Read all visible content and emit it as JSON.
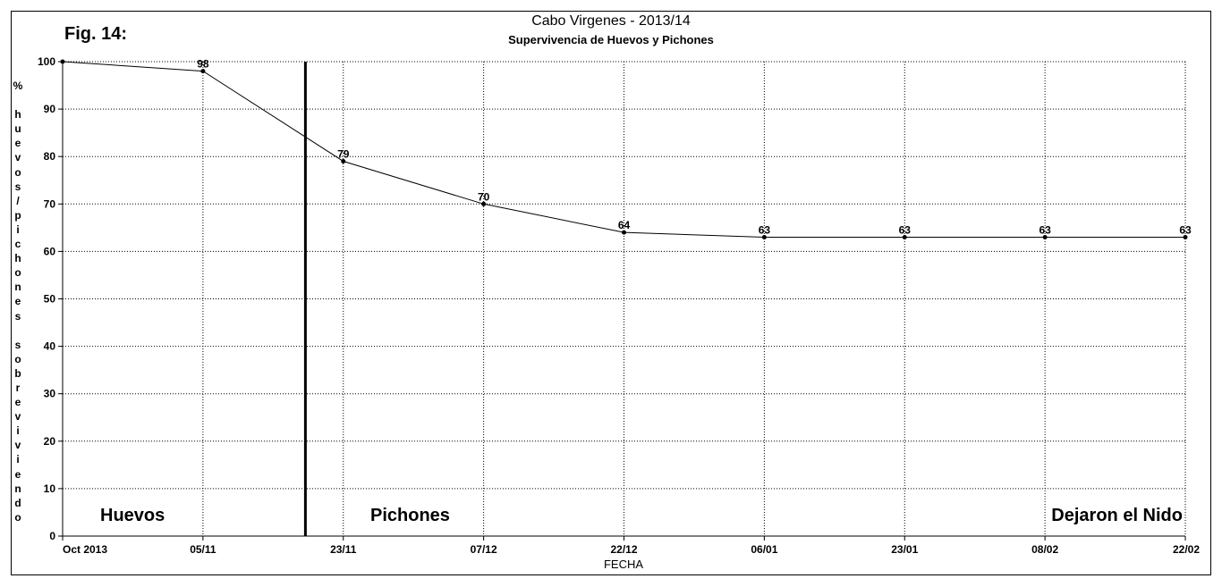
{
  "figure_label": "Fig. 14:",
  "chart_data": {
    "type": "line",
    "title": "Cabo Virgenes - 2013/14",
    "subtitle": "Supervivencia de Huevos y Pichones",
    "xlabel": "FECHA",
    "ylabel": "%\n\nh\nu\ne\nv\no\ns\n/\np\ni\nc\nh\no\nn\ne\ns\n\ns\no\nb\nr\ne\nv\ni\nv\ni\ne\nn\nd\no",
    "categories": [
      "Oct 2013",
      "05/11",
      "23/11",
      "07/12",
      "22/12",
      "06/01",
      "23/01",
      "08/02",
      "22/02"
    ],
    "values": [
      100,
      98,
      79,
      70,
      64,
      63,
      63,
      63,
      63
    ],
    "data_labels": [
      "",
      "98",
      "79",
      "70",
      "64",
      "63",
      "63",
      "63",
      "63"
    ],
    "ylim": [
      0,
      100
    ],
    "yticks": [
      0,
      10,
      20,
      30,
      40,
      50,
      60,
      70,
      80,
      90,
      100
    ],
    "grid": true,
    "divider_x": 1.73,
    "regions": [
      "Huevos",
      "Pichones",
      "Dejaron el Nido"
    ]
  }
}
